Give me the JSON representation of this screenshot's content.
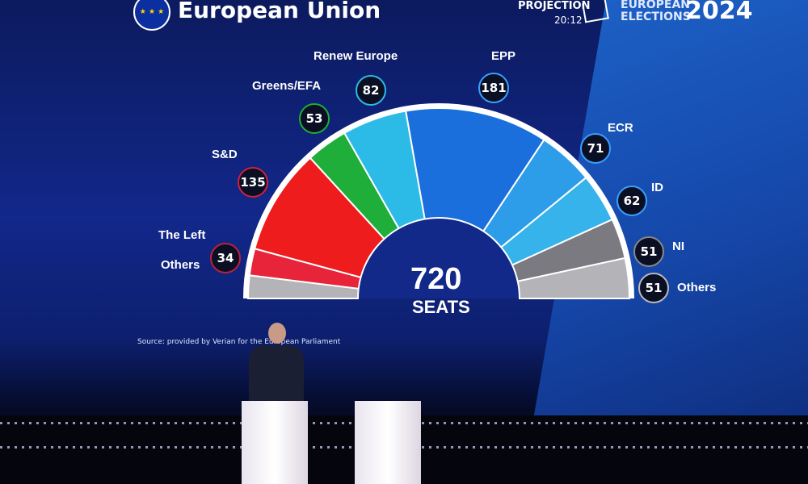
{
  "header": {
    "org_title": "European Union",
    "projection_label": "PROJECTION",
    "time": "20:12",
    "event_line1": "EUROPEAN",
    "event_line2": "ELECTIONS",
    "year": "2024"
  },
  "source": "Source: provided by Verian for the European Parliament",
  "chart_data": {
    "type": "pie",
    "subtype": "hemicycle",
    "total": "720",
    "total_label": "SEATS",
    "series": [
      {
        "name": "Others",
        "value": null,
        "color": "#b4b4b8"
      },
      {
        "name": "The Left",
        "value": 34,
        "color": "#e8243a"
      },
      {
        "name": "S&D",
        "value": 135,
        "color": "#ee1c1c"
      },
      {
        "name": "Greens/EFA",
        "value": 53,
        "color": "#1fae3a"
      },
      {
        "name": "Renew Europe",
        "value": 82,
        "color": "#2bbbe6"
      },
      {
        "name": "EPP",
        "value": 181,
        "color": "#1a6fdc"
      },
      {
        "name": "ECR",
        "value": 71,
        "color": "#2d9ce9"
      },
      {
        "name": "ID",
        "value": 62,
        "color": "#35b3ea"
      },
      {
        "name": "NI",
        "value": 51,
        "color": "#7a7a80"
      },
      {
        "name": "Others",
        "value": 51,
        "color": "#b4b4b8"
      }
    ]
  },
  "labels": {
    "left": "The Left",
    "left_others": "Others",
    "sd": "S&D",
    "greens": "Greens/EFA",
    "renew": "Renew Europe",
    "epp": "EPP",
    "ecr": "ECR",
    "id": "ID",
    "ni": "NI",
    "others": "Others"
  },
  "badges": {
    "left": "34",
    "sd": "135",
    "greens": "53",
    "renew": "82",
    "epp": "181",
    "ecr": "71",
    "id": "62",
    "ni": "51",
    "others": "51"
  }
}
